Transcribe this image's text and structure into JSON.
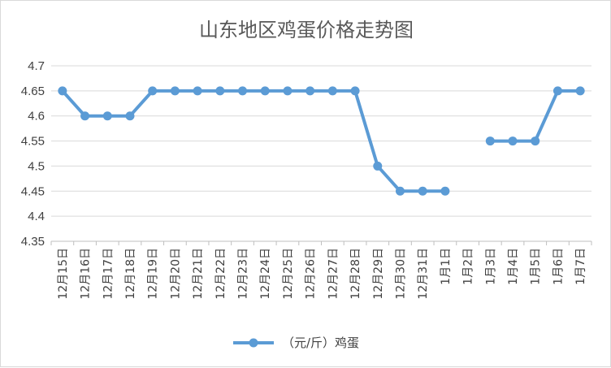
{
  "chart_data": {
    "type": "line",
    "title": "山东地区鸡蛋价格走势图",
    "categories": [
      "12月15日",
      "12月16日",
      "12月17日",
      "12月18日",
      "12月19日",
      "12月20日",
      "12月21日",
      "12月22日",
      "12月23日",
      "12月24日",
      "12月25日",
      "12月26日",
      "12月27日",
      "12月28日",
      "12月29日",
      "12月30日",
      "12月31日",
      "1月1日",
      "1月2日",
      "1月3日",
      "1月4日",
      "1月5日",
      "1月6日",
      "1月7日"
    ],
    "series": [
      {
        "name": "（元/斤）鸡蛋",
        "color": "#5b9bd5",
        "values": [
          4.65,
          4.6,
          4.6,
          4.6,
          4.65,
          4.65,
          4.65,
          4.65,
          4.65,
          4.65,
          4.65,
          4.65,
          4.65,
          4.65,
          4.5,
          4.45,
          4.45,
          4.45,
          null,
          4.55,
          4.55,
          4.55,
          4.65,
          4.65
        ]
      }
    ],
    "ylim": [
      4.35,
      4.7
    ],
    "yticks": [
      "4.35",
      "4.4",
      "4.45",
      "4.5",
      "4.55",
      "4.6",
      "4.65",
      "4.7"
    ],
    "xlabel": "",
    "ylabel": "",
    "grid": "horizontal",
    "legend": "bottom"
  }
}
